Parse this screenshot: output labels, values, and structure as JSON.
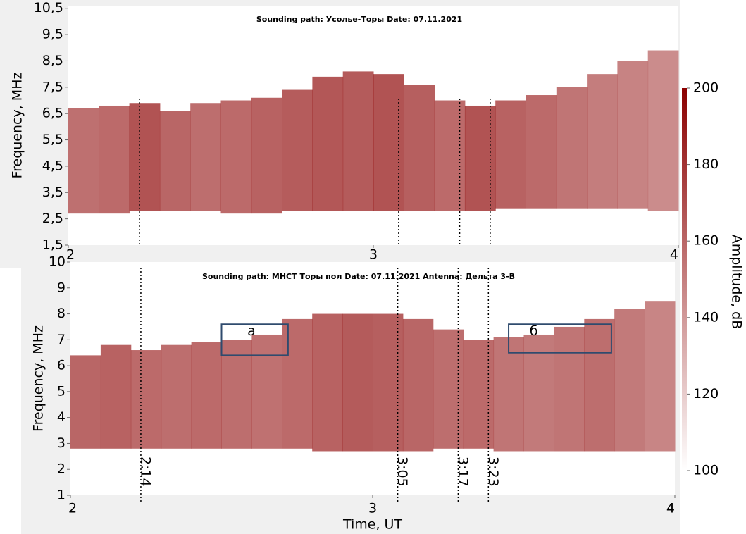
{
  "chart_data": [
    {
      "type": "heatmap",
      "title": "Sounding path: Усолье-Торы Date: 07.11.2021",
      "ylabel": "Frequency, MHz",
      "xlim": [
        2,
        4
      ],
      "xticks": [
        2,
        3,
        4
      ],
      "ylim": [
        1.5,
        10.6
      ],
      "yticks": [
        {
          "value": 1.5,
          "label": "1,5"
        },
        {
          "value": 2.5,
          "label": "2,5"
        },
        {
          "value": 3.5,
          "label": "3,5"
        },
        {
          "value": 4.5,
          "label": "4,5"
        },
        {
          "value": 5.5,
          "label": "5,5"
        },
        {
          "value": 6.5,
          "label": "6,5"
        },
        {
          "value": 7.5,
          "label": "7,5"
        },
        {
          "value": 8.5,
          "label": "8,5"
        },
        {
          "value": 9.5,
          "label": "9,5"
        },
        {
          "value": 10.5,
          "label": "10,5"
        }
      ],
      "x": [
        2.0,
        2.1,
        2.2,
        2.3,
        2.4,
        2.5,
        2.6,
        2.7,
        2.8,
        2.9,
        3.0,
        3.1,
        3.2,
        3.3,
        3.4,
        3.5,
        3.6,
        3.7,
        3.8,
        3.9
      ],
      "band_low": [
        2.7,
        2.7,
        2.8,
        2.8,
        2.8,
        2.7,
        2.7,
        2.8,
        2.8,
        2.8,
        2.8,
        2.8,
        2.8,
        2.8,
        2.9,
        2.9,
        2.9,
        2.9,
        2.9,
        2.8
      ],
      "band_high": [
        6.7,
        6.8,
        6.9,
        6.6,
        6.9,
        7.0,
        7.1,
        7.4,
        7.9,
        8.1,
        8.0,
        7.6,
        7.0,
        6.8,
        7.0,
        7.2,
        7.5,
        8.0,
        8.5,
        8.9
      ],
      "amplitude": [
        175,
        178,
        190,
        180,
        176,
        178,
        182,
        185,
        188,
        186,
        190,
        184,
        178,
        190,
        182,
        178,
        172,
        168,
        165,
        160
      ],
      "vlines": [
        2.233,
        3.083,
        3.283,
        3.383
      ]
    },
    {
      "type": "heatmap",
      "title": "Sounding path: МНСТ Торы пол Date: 07.11.2021 Antenna: Дельта 3-В",
      "xlabel": "Time, UT",
      "ylabel": "Frequency, MHz",
      "xlim": [
        2,
        4
      ],
      "xticks": [
        2,
        3,
        4
      ],
      "ylim": [
        1,
        10
      ],
      "yticks": [
        1,
        2,
        3,
        4,
        5,
        6,
        7,
        8,
        9,
        10
      ],
      "x": [
        2.0,
        2.1,
        2.2,
        2.3,
        2.4,
        2.5,
        2.6,
        2.7,
        2.8,
        2.9,
        3.0,
        3.1,
        3.2,
        3.3,
        3.4,
        3.5,
        3.6,
        3.7,
        3.8,
        3.9
      ],
      "band_low": [
        2.8,
        2.8,
        2.8,
        2.8,
        2.8,
        2.8,
        2.8,
        2.8,
        2.7,
        2.7,
        2.7,
        2.7,
        2.8,
        2.8,
        2.7,
        2.7,
        2.7,
        2.7,
        2.7,
        2.7
      ],
      "band_high": [
        6.4,
        6.8,
        6.6,
        6.8,
        6.9,
        7.0,
        7.2,
        7.8,
        8.0,
        8.0,
        8.0,
        7.8,
        7.4,
        7.0,
        7.1,
        7.2,
        7.5,
        7.8,
        8.2,
        8.5
      ],
      "amplitude": [
        180,
        182,
        178,
        176,
        178,
        176,
        174,
        178,
        182,
        186,
        184,
        180,
        176,
        178,
        172,
        170,
        172,
        176,
        170,
        164
      ],
      "vlines": [
        {
          "value": 2.233,
          "label": "2:14"
        },
        {
          "value": 3.083,
          "label": "3:05"
        },
        {
          "value": 3.283,
          "label": "3:17"
        },
        {
          "value": 3.383,
          "label": "3:23"
        }
      ],
      "boxes": [
        {
          "label": "а",
          "x": [
            2.5,
            2.72
          ],
          "y": [
            6.4,
            7.6
          ]
        },
        {
          "label": "б",
          "x": [
            3.45,
            3.79
          ],
          "y": [
            6.5,
            7.6
          ]
        }
      ],
      "colorbar": {
        "label": "Amplitude, dB",
        "lim": [
          100,
          200
        ],
        "ticks": [
          100,
          120,
          140,
          160,
          180,
          200
        ],
        "colors": [
          "#ffffff",
          "#8b0000"
        ]
      }
    }
  ]
}
